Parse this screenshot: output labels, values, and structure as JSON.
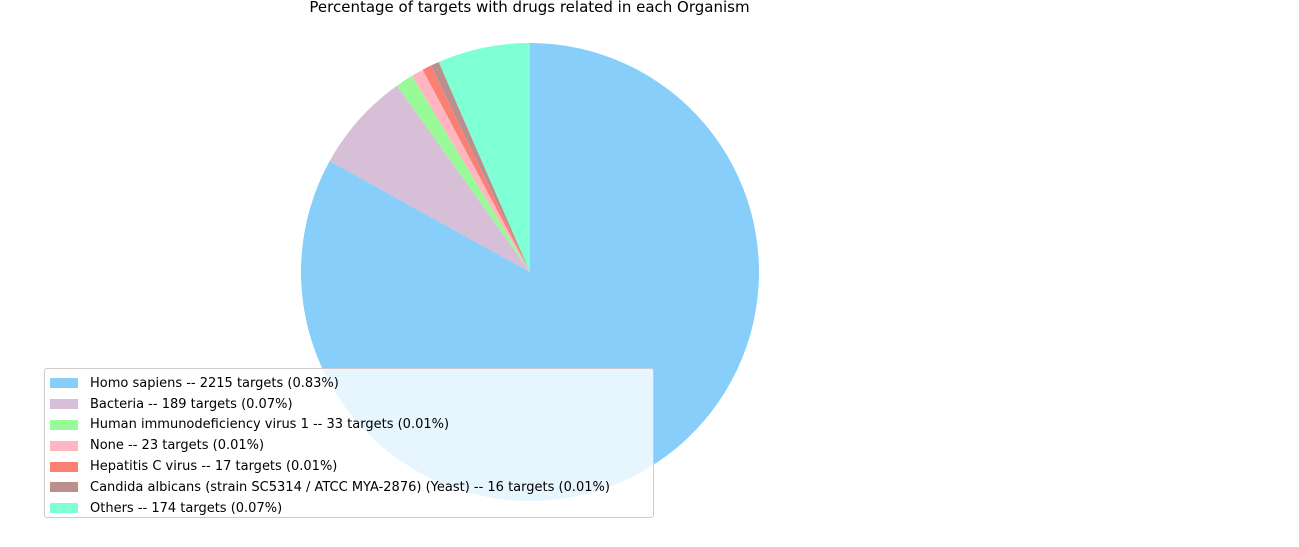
{
  "chart_data": {
    "type": "pie",
    "title": "Percentage of targets with drugs related in each Organism",
    "start_angle_deg": 90,
    "direction": "clockwise",
    "legend_position": "lower-left",
    "slices": [
      {
        "label": "Homo sapiens -- 2215 targets (0.83%)",
        "value": 2215,
        "color": "#87CEFA"
      },
      {
        "label": "Bacteria -- 189 targets (0.07%)",
        "value": 189,
        "color": "#D8BFD8"
      },
      {
        "label": "Human immunodeficiency virus 1 -- 33 targets (0.01%)",
        "value": 33,
        "color": "#98FB98"
      },
      {
        "label": "None -- 23 targets (0.01%)",
        "value": 23,
        "color": "#FFB6C1"
      },
      {
        "label": "Hepatitis C virus -- 17 targets (0.01%)",
        "value": 17,
        "color": "#FA8072"
      },
      {
        "label": "Candida albicans (strain SC5314 / ATCC MYA-2876) (Yeast) -- 16 targets (0.01%)",
        "value": 16,
        "color": "#BC8F8F"
      },
      {
        "label": "Others -- 174 targets (0.07%)",
        "value": 174,
        "color": "#7FFFD4"
      }
    ]
  }
}
